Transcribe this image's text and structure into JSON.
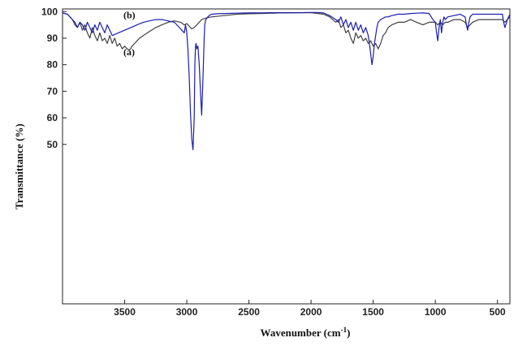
{
  "chart_data": {
    "type": "line",
    "title": "",
    "xlabel": "Wavenumber (cm",
    "xlabel_sup": "-1",
    "xlabel_close": ")",
    "ylabel": "Transmittance (%)",
    "xlim": [
      4000,
      400
    ],
    "x_reversed": true,
    "ylim": [
      -10,
      101
    ],
    "x_ticks": [
      3500,
      3000,
      2500,
      2000,
      1500,
      1000,
      500
    ],
    "x_tick_labels": [
      "3500",
      "3000",
      "2500",
      "2000",
      "1500",
      "1000",
      "500"
    ],
    "y_ticks": [
      50,
      60,
      70,
      80,
      90,
      100
    ],
    "y_tick_labels": [
      "50",
      "60",
      "70",
      "80",
      "90",
      "100"
    ],
    "grid": false,
    "legend": "none",
    "series": [
      {
        "name": "(a)",
        "color": "#404040",
        "x": [
          4000,
          3960,
          3920,
          3900,
          3880,
          3860,
          3840,
          3820,
          3800,
          3780,
          3760,
          3740,
          3720,
          3700,
          3680,
          3660,
          3640,
          3620,
          3600,
          3580,
          3560,
          3540,
          3520,
          3500,
          3480,
          3460,
          3440,
          3420,
          3400,
          3380,
          3350,
          3300,
          3250,
          3200,
          3150,
          3100,
          3050,
          3020,
          3000,
          2980,
          2960,
          2940,
          2920,
          2900,
          2880,
          2850,
          2800,
          2700,
          2600,
          2500,
          2400,
          2300,
          2250,
          2200,
          2100,
          2000,
          1900,
          1850,
          1800,
          1780,
          1760,
          1740,
          1720,
          1700,
          1680,
          1660,
          1640,
          1620,
          1600,
          1580,
          1560,
          1540,
          1520,
          1500,
          1480,
          1460,
          1440,
          1420,
          1400,
          1380,
          1350,
          1300,
          1250,
          1200,
          1150,
          1100,
          1050,
          1000,
          980,
          960,
          940,
          920,
          900,
          850,
          800,
          760,
          740,
          720,
          700,
          650,
          600,
          550,
          500,
          460,
          440,
          420,
          400
        ],
        "y": [
          99.5,
          99,
          97,
          95,
          94,
          96,
          93,
          95,
          92,
          90,
          94,
          91,
          89,
          92,
          89,
          90,
          88,
          91,
          88,
          90,
          87,
          88,
          86,
          87,
          86,
          85.5,
          87,
          88,
          89,
          90,
          91,
          92.5,
          94,
          95,
          96,
          96.5,
          96,
          95,
          95.5,
          94.5,
          93.5,
          94,
          95,
          96,
          97,
          97.5,
          98,
          98.5,
          99,
          99.2,
          99.3,
          99.4,
          99.5,
          99.5,
          99.6,
          99.6,
          99,
          98,
          96,
          97,
          94,
          95,
          92,
          93,
          90,
          88,
          92,
          90,
          91,
          89,
          90,
          88,
          89,
          87,
          88,
          86,
          88,
          91,
          92,
          94,
          95,
          96,
          96,
          97,
          96,
          95,
          96,
          96,
          95,
          96,
          95,
          96,
          96,
          97,
          97,
          96,
          94,
          95,
          96,
          97,
          97,
          97,
          97,
          97,
          96,
          97,
          98
        ]
      },
      {
        "name": "(b)",
        "color": "#1c1cb4",
        "x": [
          4000,
          3960,
          3920,
          3900,
          3880,
          3860,
          3840,
          3820,
          3800,
          3780,
          3760,
          3740,
          3720,
          3700,
          3680,
          3660,
          3640,
          3620,
          3600,
          3550,
          3500,
          3450,
          3400,
          3350,
          3300,
          3250,
          3200,
          3150,
          3100,
          3060,
          3040,
          3020,
          3010,
          3000,
          2990,
          2980,
          2970,
          2960,
          2950,
          2940,
          2935,
          2930,
          2925,
          2920,
          2910,
          2900,
          2890,
          2880,
          2870,
          2860,
          2855,
          2850,
          2840,
          2830,
          2820,
          2800,
          2750,
          2700,
          2600,
          2500,
          2400,
          2300,
          2200,
          2100,
          2000,
          1950,
          1900,
          1850,
          1800,
          1780,
          1760,
          1740,
          1720,
          1700,
          1680,
          1660,
          1640,
          1620,
          1600,
          1580,
          1560,
          1540,
          1530,
          1520,
          1510,
          1500,
          1490,
          1480,
          1470,
          1460,
          1440,
          1420,
          1400,
          1380,
          1350,
          1300,
          1250,
          1200,
          1150,
          1100,
          1050,
          1020,
          1000,
          990,
          980,
          970,
          960,
          950,
          940,
          930,
          920,
          900,
          850,
          800,
          760,
          750,
          740,
          730,
          720,
          700,
          650,
          600,
          550,
          500,
          460,
          450,
          440,
          420,
          400
        ],
        "y": [
          99.5,
          99,
          97,
          96,
          94,
          96,
          95,
          93,
          96,
          94,
          92,
          95,
          93,
          96,
          94,
          92,
          95,
          93,
          91,
          92,
          93,
          94,
          95,
          96,
          96.5,
          97,
          97,
          96.5,
          96,
          94,
          93,
          92,
          95,
          92,
          85,
          75,
          62,
          52,
          48,
          60,
          80,
          87,
          88,
          86,
          87,
          80,
          70,
          61,
          75,
          90,
          95,
          96.5,
          97.5,
          98,
          98.5,
          99,
          99.2,
          99.3,
          99.4,
          99.5,
          99.5,
          99.6,
          99.6,
          99.6,
          99.7,
          99.7,
          99.5,
          98.5,
          97,
          96,
          98,
          95,
          97,
          94,
          96,
          93,
          96,
          93,
          95,
          92,
          94,
          91,
          88,
          84,
          80,
          83,
          88,
          91,
          94,
          96,
          97,
          97.5,
          98,
          98,
          98.5,
          99,
          99,
          99.3,
          99.4,
          99.5,
          99.3,
          97,
          96,
          92,
          89,
          94,
          97,
          92,
          96,
          98,
          97,
          98,
          98.5,
          99,
          98,
          95,
          93,
          96,
          98,
          99,
          99,
          99,
          99,
          99,
          99,
          96,
          94,
          97,
          99
        ]
      }
    ],
    "annotations": [
      {
        "text": "(b)",
        "x": 3510,
        "y": 97.5,
        "series": "(b)"
      },
      {
        "text": "(a)",
        "x": 3510,
        "y": 83.5,
        "series": "(a)"
      }
    ]
  }
}
